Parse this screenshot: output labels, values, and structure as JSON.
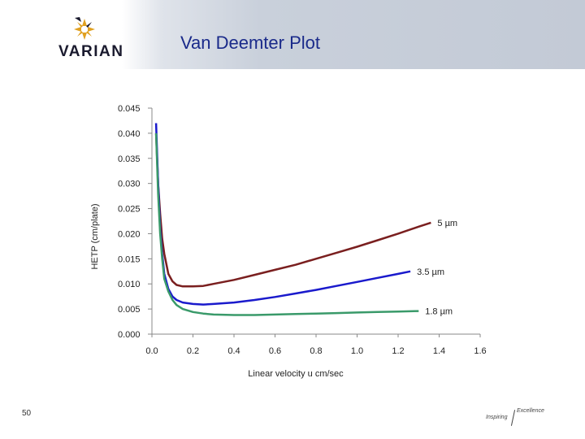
{
  "slide": {
    "title": "Van Deemter Plot",
    "logo_text": "VARIAN",
    "slide_number": "50",
    "tagline_left": "Inspiring",
    "tagline_right": "Excellence"
  },
  "chart_data": {
    "type": "line",
    "xlabel": "Linear velocity u cm/sec",
    "ylabel": "HETP (cm/plate)",
    "xlim": [
      0.0,
      1.6
    ],
    "ylim": [
      0.0,
      0.045
    ],
    "x_ticks": [
      "0.0",
      "0.2",
      "0.4",
      "0.6",
      "0.8",
      "1.0",
      "1.2",
      "1.4",
      "1.6"
    ],
    "y_ticks": [
      "0.000",
      "0.005",
      "0.010",
      "0.015",
      "0.020",
      "0.025",
      "0.030",
      "0.035",
      "0.040",
      "0.045"
    ],
    "grid": false,
    "series": [
      {
        "name": "5 µm",
        "color": "#7a1f1f",
        "x": [
          0.02,
          0.03,
          0.04,
          0.05,
          0.06,
          0.08,
          0.1,
          0.12,
          0.15,
          0.2,
          0.25,
          0.3,
          0.4,
          0.5,
          0.6,
          0.7,
          0.8,
          0.9,
          1.0,
          1.1,
          1.2,
          1.3,
          1.36
        ],
        "y": [
          0.04,
          0.03,
          0.024,
          0.019,
          0.016,
          0.012,
          0.0105,
          0.0098,
          0.0095,
          0.0095,
          0.0096,
          0.01,
          0.0108,
          0.0118,
          0.0128,
          0.0138,
          0.015,
          0.0162,
          0.0174,
          0.0187,
          0.02,
          0.0214,
          0.0222
        ]
      },
      {
        "name": "3.5 µm",
        "color": "#1a1acc",
        "x": [
          0.02,
          0.03,
          0.04,
          0.05,
          0.06,
          0.08,
          0.1,
          0.12,
          0.15,
          0.2,
          0.25,
          0.3,
          0.4,
          0.5,
          0.6,
          0.7,
          0.8,
          0.9,
          1.0,
          1.1,
          1.2,
          1.26
        ],
        "y": [
          0.042,
          0.03,
          0.021,
          0.016,
          0.012,
          0.009,
          0.0075,
          0.0068,
          0.0063,
          0.006,
          0.0059,
          0.006,
          0.0063,
          0.0068,
          0.0074,
          0.0081,
          0.0088,
          0.0096,
          0.0104,
          0.0112,
          0.012,
          0.0125
        ]
      },
      {
        "name": "1.8 µm",
        "color": "#3a9a6a",
        "x": [
          0.02,
          0.03,
          0.04,
          0.05,
          0.06,
          0.08,
          0.1,
          0.12,
          0.15,
          0.2,
          0.25,
          0.3,
          0.4,
          0.5,
          0.6,
          0.7,
          0.8,
          0.9,
          1.0,
          1.1,
          1.2,
          1.3
        ],
        "y": [
          0.04,
          0.028,
          0.02,
          0.015,
          0.011,
          0.0085,
          0.0068,
          0.0058,
          0.005,
          0.0044,
          0.0041,
          0.0039,
          0.0038,
          0.0038,
          0.0039,
          0.004,
          0.0041,
          0.0042,
          0.0043,
          0.0044,
          0.0045,
          0.0046
        ]
      }
    ]
  }
}
